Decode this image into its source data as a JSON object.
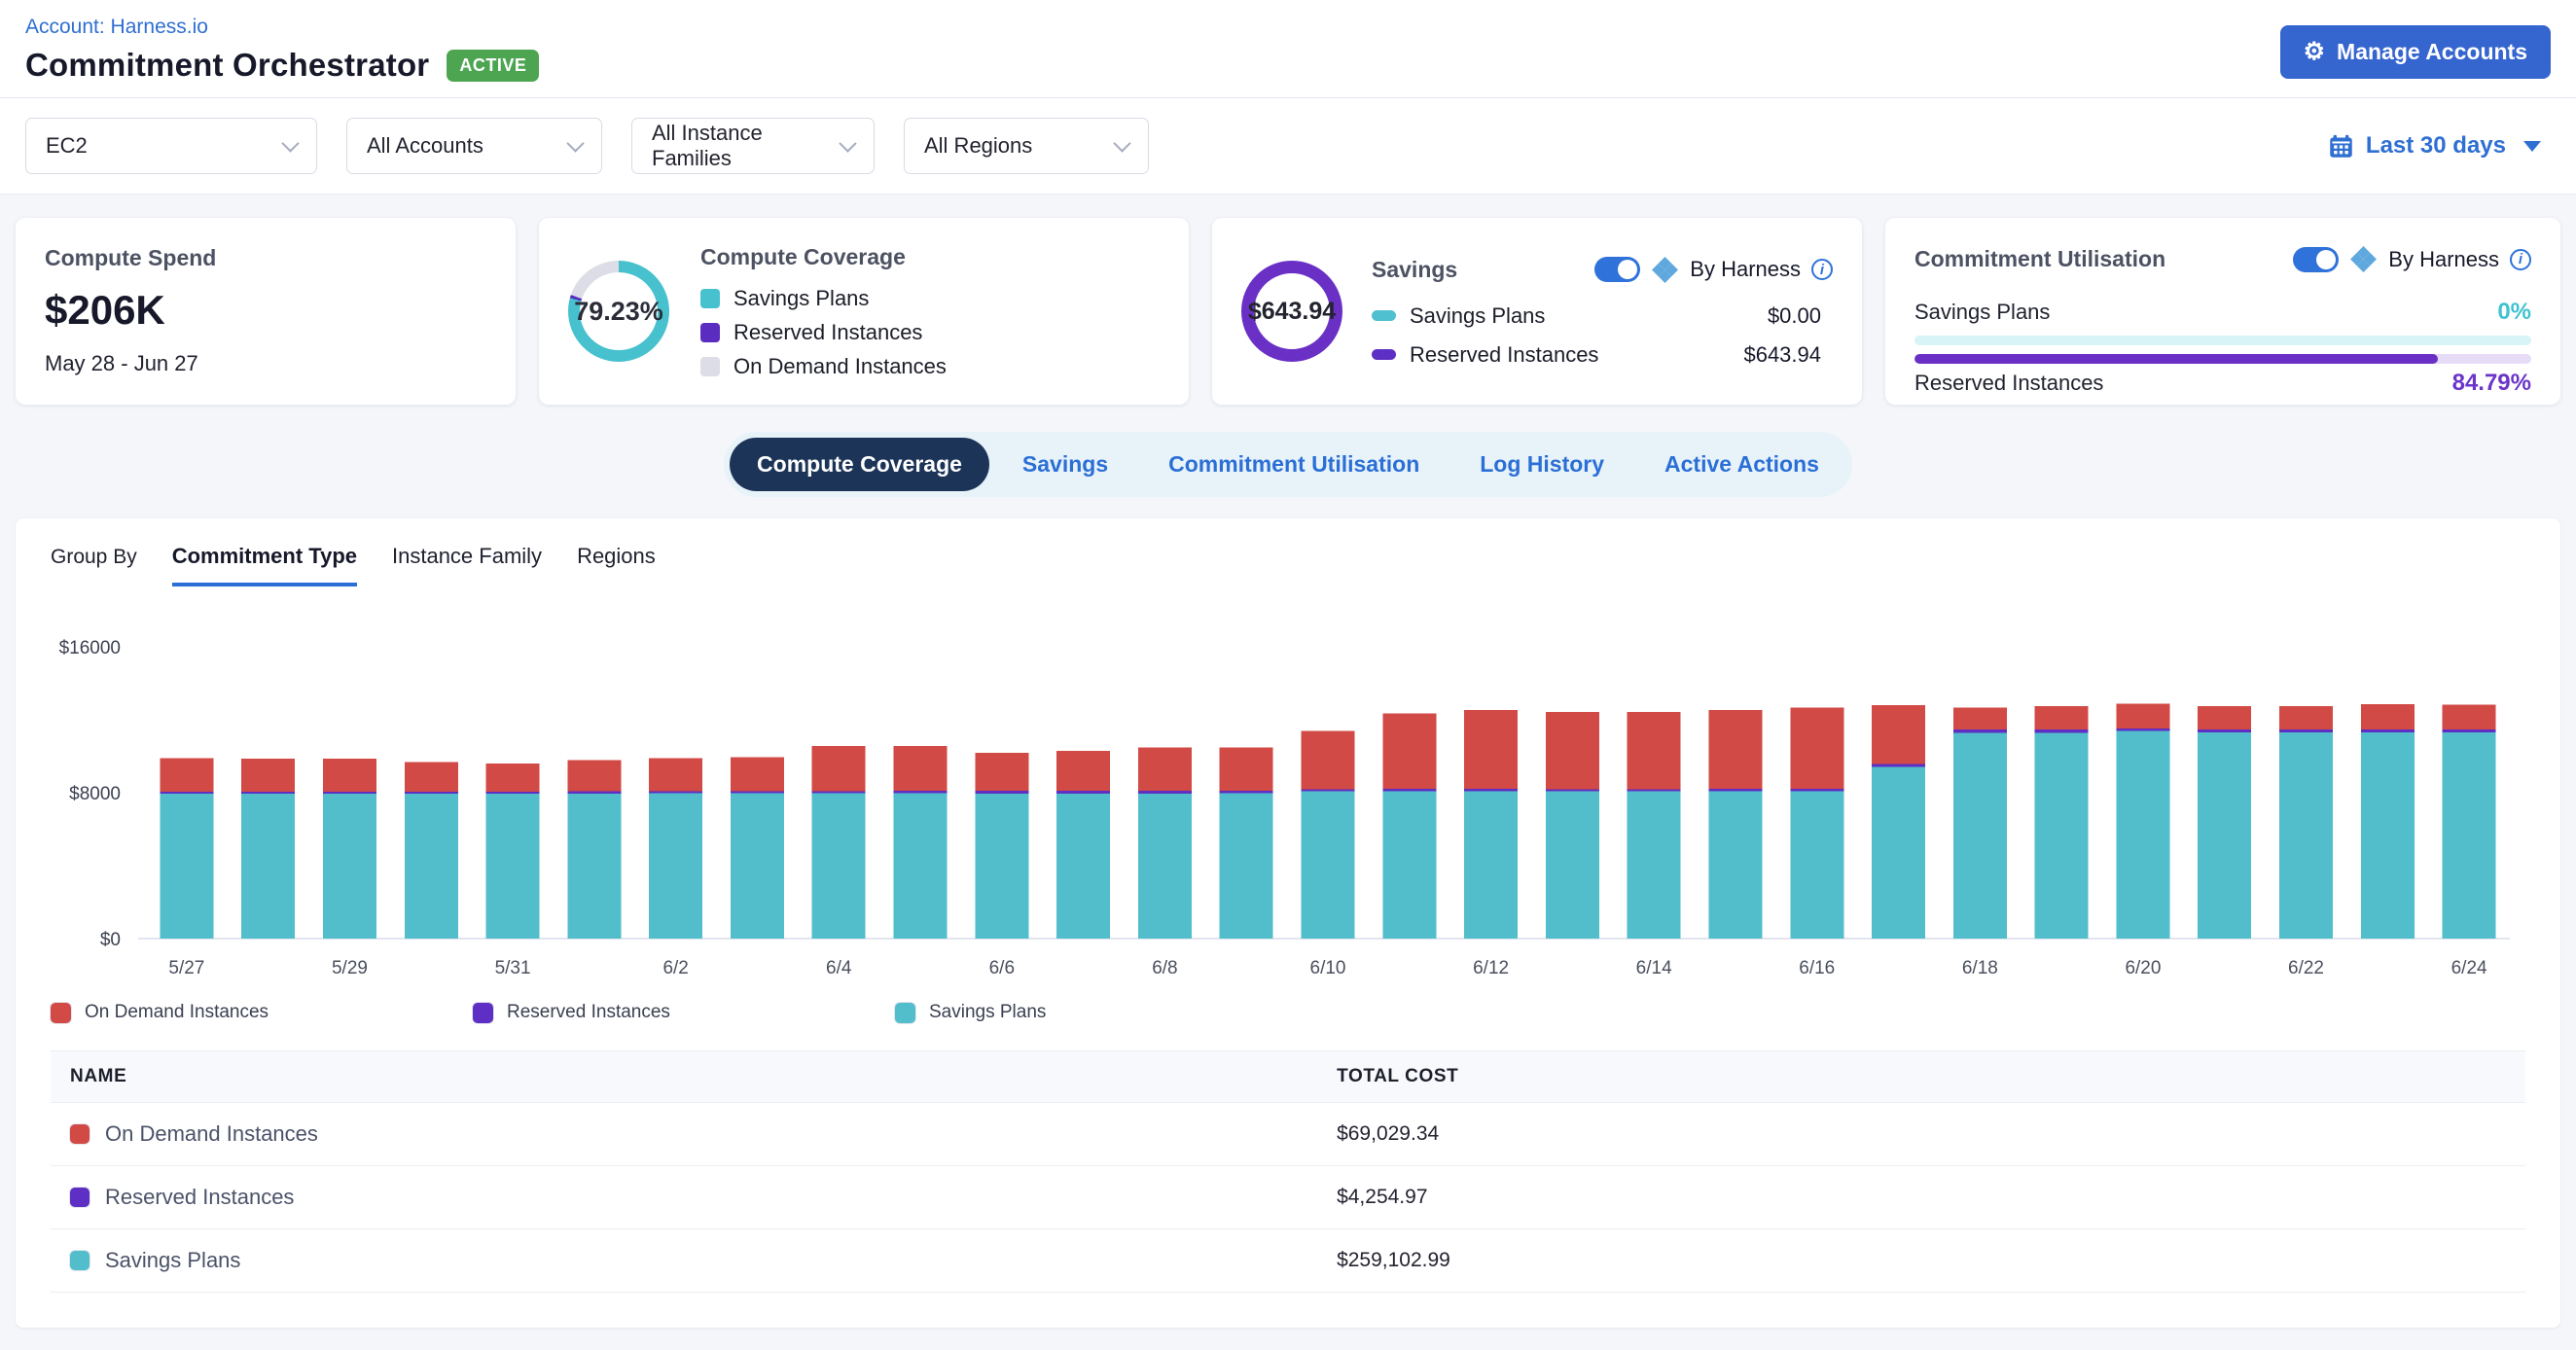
{
  "header": {
    "account_link": "Account: Harness.io",
    "title": "Commitment Orchestrator",
    "status_badge": "ACTIVE",
    "manage_accounts_label": "Manage Accounts"
  },
  "filters": {
    "service": "EC2",
    "accounts": "All Accounts",
    "instance_families": "All Instance Families",
    "regions": "All Regions",
    "date_range": "Last 30 days"
  },
  "cards": {
    "compute_spend": {
      "title": "Compute Spend",
      "value": "$206K",
      "period": "May 28 - Jun 27"
    },
    "compute_coverage": {
      "title": "Compute Coverage",
      "percent_label": "79.23%",
      "segments": [
        {
          "label": "Savings Plans",
          "color": "#47c1ce",
          "value": 79.23
        },
        {
          "label": "Reserved Instances",
          "color": "#5b2cc0",
          "value": 1.0
        },
        {
          "label": "On Demand Instances",
          "color": "#dcdde6",
          "value": 19.77
        }
      ]
    },
    "savings": {
      "title": "Savings",
      "total": "$643.94",
      "ring_color": "#6a30c6",
      "by_harness": "By Harness",
      "rows": [
        {
          "label": "Savings Plans",
          "value": "$0.00",
          "color": "#4ec0cf"
        },
        {
          "label": "Reserved Instances",
          "value": "$643.94",
          "color": "#5e2fc4"
        }
      ]
    },
    "commitment_utilisation": {
      "title": "Commitment Utilisation",
      "by_harness": "By Harness",
      "rows": [
        {
          "label": "Savings Plans",
          "percent": "0%",
          "color": "#4ec3ce",
          "track": "#d8f4f6"
        },
        {
          "label": "Reserved Instances",
          "percent": "84.79%",
          "color": "#6a30c6",
          "track": "#e7dcf8"
        }
      ]
    }
  },
  "tabs": {
    "items": [
      "Compute Coverage",
      "Savings",
      "Commitment Utilisation",
      "Log History",
      "Active Actions"
    ],
    "active": "Compute Coverage"
  },
  "group_by": {
    "label": "Group By",
    "options": [
      "Commitment Type",
      "Instance Family",
      "Regions"
    ],
    "active": "Commitment Type"
  },
  "chart_data": {
    "type": "bar",
    "stacked": true,
    "title": "Compute coverage by commitment type, daily cost",
    "x": [
      "5/27",
      "5/28",
      "5/29",
      "5/30",
      "5/31",
      "6/1",
      "6/2",
      "6/3",
      "6/4",
      "6/5",
      "6/6",
      "6/7",
      "6/8",
      "6/9",
      "6/10",
      "6/11",
      "6/12",
      "6/13",
      "6/14",
      "6/15",
      "6/16",
      "6/17",
      "6/18",
      "6/19",
      "6/20",
      "6/21",
      "6/22",
      "6/23",
      "6/24"
    ],
    "x_label_every": 2,
    "ylim": [
      0,
      16000
    ],
    "yticks": [
      {
        "v": 0,
        "label": "$0"
      },
      {
        "v": 8000,
        "label": "$8000"
      },
      {
        "v": 16000,
        "label": "$16000"
      }
    ],
    "series": [
      {
        "name": "Savings Plans",
        "color": "#52bdcb",
        "values": [
          7950,
          7950,
          7950,
          7950,
          7950,
          7960,
          7980,
          7980,
          7980,
          7980,
          7960,
          7960,
          7960,
          7970,
          8090,
          8090,
          8080,
          8080,
          8080,
          8080,
          8090,
          9420,
          11290,
          11290,
          11380,
          11300,
          11300,
          11300,
          11300
        ]
      },
      {
        "name": "Reserved Instances",
        "color": "#5e2fc4",
        "values": [
          100,
          100,
          100,
          100,
          100,
          120,
          100,
          100,
          110,
          120,
          150,
          160,
          160,
          150,
          100,
          120,
          130,
          120,
          120,
          140,
          120,
          150,
          180,
          170,
          150,
          170,
          170,
          170,
          170
        ]
      },
      {
        "name": "On Demand Instances",
        "color": "#d24a45",
        "values": [
          1850,
          1820,
          1820,
          1640,
          1550,
          1710,
          1820,
          1880,
          2470,
          2460,
          2080,
          2170,
          2370,
          2370,
          3190,
          4145,
          4320,
          4240,
          4240,
          4310,
          4450,
          3230,
          1210,
          1300,
          1360,
          1290,
          1280,
          1380,
          1370
        ]
      }
    ],
    "legend_order": [
      "On Demand Instances",
      "Reserved Instances",
      "Savings Plans"
    ]
  },
  "table": {
    "columns": [
      "NAME",
      "TOTAL COST"
    ],
    "rows": [
      {
        "name": "On Demand Instances",
        "color": "#d24a45",
        "total_cost": "$69,029.34"
      },
      {
        "name": "Reserved Instances",
        "color": "#5e2fc4",
        "total_cost": "$4,254.97"
      },
      {
        "name": "Savings Plans",
        "color": "#52bdcb",
        "total_cost": "$259,102.99"
      }
    ]
  }
}
